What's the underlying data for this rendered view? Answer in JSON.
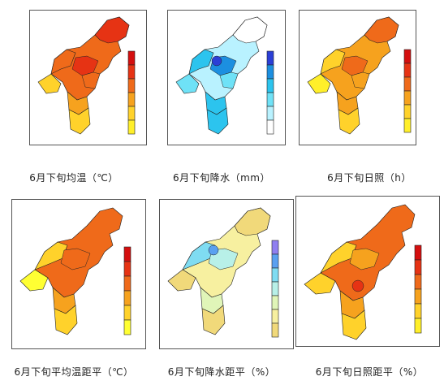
{
  "panels": [
    {
      "id": "avg-temp",
      "caption": "6月下旬均温（℃）",
      "colors": [
        "#ffef2a",
        "#ffd22b",
        "#f6a21e",
        "#ef6a1a",
        "#e63314",
        "#d40f0f"
      ]
    },
    {
      "id": "precip",
      "caption": "6月下旬降水（mm）",
      "colors": [
        "#ffffff",
        "#b9f2ff",
        "#6fe2f7",
        "#2cc4ee",
        "#1c8fe0",
        "#2b3fd6"
      ]
    },
    {
      "id": "sunshine",
      "caption": "6月下旬日照（h）",
      "colors": [
        "#ffef2a",
        "#ffd22b",
        "#f6a21e",
        "#ef6a1a",
        "#e63314",
        "#d40f0f"
      ]
    },
    {
      "id": "temp-anom",
      "caption": "6月下旬平均温距平（℃）",
      "colors": [
        "#ffff33",
        "#ffd22b",
        "#f6a21e",
        "#ef6a1a",
        "#e63314",
        "#d40f0f"
      ]
    },
    {
      "id": "precip-anom",
      "caption": "6月下旬降水距平（%）",
      "colors": [
        "#f1d97a",
        "#f7f0a0",
        "#e0f5b8",
        "#b8f0e8",
        "#7fdcf2",
        "#5aa0f0",
        "#8f7ff0"
      ]
    },
    {
      "id": "sun-anom",
      "caption": "6月下旬日照距平（%）",
      "colors": [
        "#ffef2a",
        "#ffd22b",
        "#f6a21e",
        "#ef6a1a",
        "#e63314",
        "#d40f0f"
      ]
    }
  ]
}
